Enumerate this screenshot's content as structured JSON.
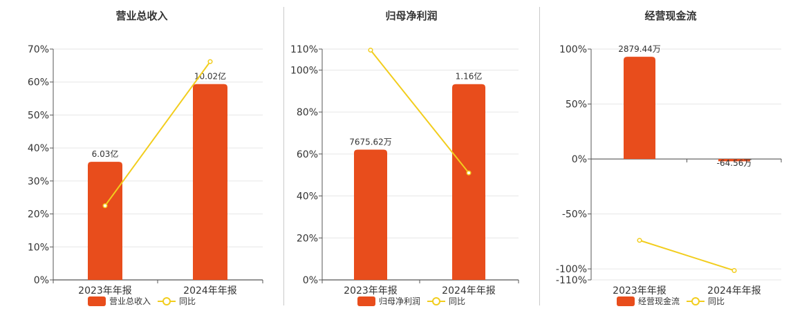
{
  "colors": {
    "bar": "#e84d1c",
    "line": "#f2cd1d",
    "axis": "#555555",
    "grid": "#e6e6e6",
    "divider": "#c9c9c9"
  },
  "chart_data": [
    {
      "type": "bar",
      "title": "营业总收入",
      "categories": [
        "2023年年报",
        "2024年年报"
      ],
      "series": [
        {
          "name": "营业总收入",
          "type": "bar",
          "values": [
            35.8,
            59.4
          ],
          "labels": [
            "6.03亿",
            "10.02亿"
          ]
        },
        {
          "name": "同比",
          "type": "line",
          "values": [
            22.5,
            66.2
          ]
        }
      ],
      "ylim": [
        0,
        70
      ],
      "yticks": [
        "0%",
        "10%",
        "20%",
        "30%",
        "40%",
        "50%",
        "60%",
        "70%"
      ],
      "grid": true,
      "legend": "bottom"
    },
    {
      "type": "bar",
      "title": "归母净利润",
      "categories": [
        "2023年年报",
        "2024年年报"
      ],
      "series": [
        {
          "name": "归母净利润",
          "type": "bar",
          "values": [
            62.1,
            93.3
          ],
          "labels": [
            "7675.62万",
            "1.16亿"
          ]
        },
        {
          "name": "同比",
          "type": "line",
          "values": [
            109.5,
            51.0
          ]
        }
      ],
      "ylim": [
        0,
        110
      ],
      "yticks": [
        "0%",
        "20%",
        "40%",
        "60%",
        "80%",
        "100%",
        "110%"
      ],
      "grid": true,
      "legend": "bottom"
    },
    {
      "type": "bar",
      "title": "经营现金流",
      "categories": [
        "2023年年报",
        "2024年年报"
      ],
      "series": [
        {
          "name": "经营现金流",
          "type": "bar",
          "values": [
            93.0,
            -2.1
          ],
          "labels": [
            "2879.44万",
            "-64.56万"
          ]
        },
        {
          "name": "同比",
          "type": "line",
          "values": [
            -74.0,
            -101.5
          ]
        }
      ],
      "ylim": [
        -110,
        100
      ],
      "yticks": [
        "100%",
        "50%",
        "0%",
        "-50%",
        "-100%",
        "-110%"
      ],
      "grid": true,
      "legend": "bottom"
    }
  ]
}
